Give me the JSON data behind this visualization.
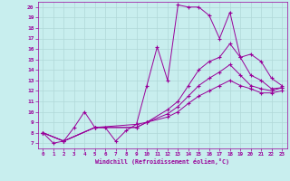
{
  "xlabel": "Windchill (Refroidissement éolien,°C)",
  "bg_color": "#c8eeee",
  "line_color": "#990099",
  "grid_color": "#b0d8d8",
  "xlim": [
    -0.5,
    23.5
  ],
  "ylim": [
    6.5,
    20.5
  ],
  "xticks": [
    0,
    1,
    2,
    3,
    4,
    5,
    6,
    7,
    8,
    9,
    10,
    11,
    12,
    13,
    14,
    15,
    16,
    17,
    18,
    19,
    20,
    21,
    22,
    23
  ],
  "yticks": [
    7,
    8,
    9,
    10,
    11,
    12,
    13,
    14,
    15,
    16,
    17,
    18,
    19,
    20
  ],
  "line1_x": [
    0,
    1,
    2,
    3,
    4,
    5,
    6,
    7,
    8,
    9,
    10,
    11,
    12,
    13,
    14,
    15,
    16,
    17,
    18,
    19,
    20,
    21,
    22,
    23
  ],
  "line1_y": [
    8.0,
    7.0,
    7.2,
    8.5,
    10.0,
    8.5,
    8.5,
    7.2,
    8.2,
    8.8,
    12.5,
    16.2,
    13.0,
    20.2,
    20.0,
    20.0,
    19.2,
    17.0,
    19.5,
    15.2,
    13.5,
    13.0,
    12.2,
    12.3
  ],
  "line2_x": [
    0,
    2,
    5,
    9,
    10,
    12,
    13,
    14,
    15,
    16,
    17,
    18,
    19,
    20,
    21,
    22,
    23
  ],
  "line2_y": [
    8.0,
    7.2,
    8.5,
    8.8,
    9.0,
    10.2,
    11.0,
    12.5,
    14.0,
    14.8,
    15.2,
    16.5,
    15.2,
    15.5,
    14.8,
    13.2,
    12.5
  ],
  "line3_x": [
    0,
    2,
    5,
    9,
    10,
    12,
    13,
    14,
    15,
    16,
    17,
    18,
    19,
    20,
    21,
    22,
    23
  ],
  "line3_y": [
    8.0,
    7.2,
    8.5,
    8.5,
    9.0,
    9.8,
    10.5,
    11.5,
    12.5,
    13.2,
    13.8,
    14.5,
    13.5,
    12.5,
    12.2,
    12.0,
    12.3
  ],
  "line4_x": [
    0,
    2,
    5,
    9,
    10,
    12,
    13,
    14,
    15,
    16,
    17,
    18,
    19,
    20,
    21,
    22,
    23
  ],
  "line4_y": [
    8.0,
    7.2,
    8.5,
    8.5,
    9.0,
    9.5,
    10.0,
    10.8,
    11.5,
    12.0,
    12.5,
    13.0,
    12.5,
    12.2,
    11.8,
    11.8,
    12.0
  ]
}
